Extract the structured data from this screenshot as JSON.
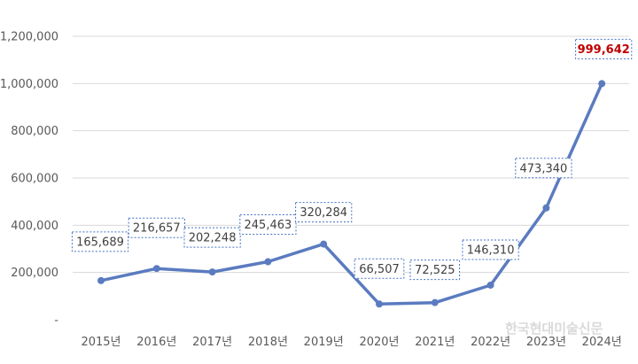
{
  "chart_data": {
    "type": "line",
    "categories": [
      "2015년",
      "2016년",
      "2017년",
      "2018년",
      "2019년",
      "2020년",
      "2021년",
      "2022년",
      "2023년",
      "2024년"
    ],
    "series": [
      {
        "values": [
          165689,
          216657,
          202248,
          245463,
          320284,
          66507,
          72525,
          146310,
          473340,
          999642
        ],
        "labels": [
          "165,689",
          "216,657",
          "202,248",
          "245,463",
          "320,284",
          "66,507",
          "72,525",
          "146,310",
          "473,340",
          "999,642"
        ],
        "color": "#5b7bc0"
      }
    ],
    "highlight_index": 9,
    "highlight_color": "#c00000",
    "yticks": [
      0,
      200000,
      400000,
      600000,
      800000,
      1000000,
      1200000
    ],
    "ytick_labels": [
      "-",
      "200,000",
      "400,000",
      "600,000",
      "800,000",
      "1,000,000",
      "1,200,000"
    ],
    "ylim": [
      0,
      1200000
    ],
    "grid": true,
    "legend": "none",
    "title": "",
    "xlabel": "",
    "ylabel": ""
  },
  "watermark": "한국현대미술신문"
}
